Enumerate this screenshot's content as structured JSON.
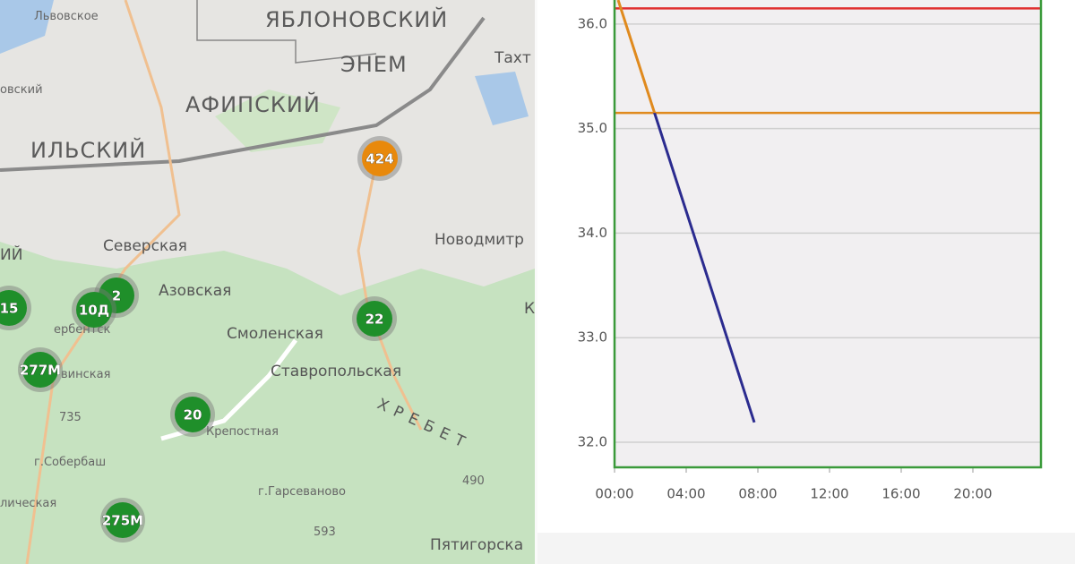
{
  "map": {
    "labels": [
      "Львовское",
      "ЯБЛОНОВСКИЙ",
      "ЭНЕМ",
      "Тахт",
      "овский",
      "АФИПСКИЙ",
      "ИЛЬСКИЙ",
      "ИЙ",
      "Северская",
      "Новодмитр",
      "Азовская",
      "Смоленская",
      "Ставропольская",
      "ербентск",
      "винская",
      "735",
      "Крепостная",
      "г.Собербаш",
      "ХРЕБЕТ",
      "490",
      "г.Гарсеваново",
      "лическая",
      "593",
      "Пятигорска",
      "К"
    ],
    "markers": [
      {
        "label": "424"
      },
      {
        "label": "2"
      },
      {
        "label": "15"
      },
      {
        "label": "10Д"
      },
      {
        "label": "22"
      },
      {
        "label": "277М"
      },
      {
        "label": "20"
      },
      {
        "label": "275М"
      }
    ]
  },
  "chart_data": {
    "type": "line",
    "x": [
      0.2,
      7.8
    ],
    "series": [
      {
        "color": "#2b2b8f",
        "above_color": "#e08a1e",
        "values": [
          36.23,
          32.19
        ]
      }
    ],
    "thresholds": [
      {
        "value": 36.15,
        "color": "#e03030"
      },
      {
        "value": 35.15,
        "color": "#e08a1e"
      }
    ],
    "xlim": [
      0,
      23.8
    ],
    "ylim": [
      31.76,
      36.23
    ],
    "xticks": [
      {
        "value": 0,
        "label": "00:00"
      },
      {
        "value": 4,
        "label": "04:00"
      },
      {
        "value": 8,
        "label": "08:00"
      },
      {
        "value": 12,
        "label": "12:00"
      },
      {
        "value": 16,
        "label": "16:00"
      },
      {
        "value": 20,
        "label": "20:00"
      }
    ],
    "yticks": [
      {
        "value": 32,
        "label": "32.0"
      },
      {
        "value": 33,
        "label": "33.0"
      },
      {
        "value": 34,
        "label": "34.0"
      },
      {
        "value": 35,
        "label": "35.0"
      },
      {
        "value": 36,
        "label": "36.0"
      }
    ],
    "grid": true,
    "plot_border_color": "#3a9a3a",
    "plot_background": "#f1eff1"
  }
}
